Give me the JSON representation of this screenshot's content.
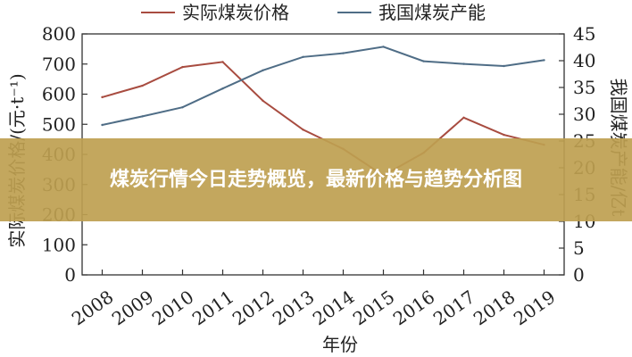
{
  "banner": {
    "title": "煤炭行情今日走势概览，最新价格与趋势分析图"
  },
  "chart_data": {
    "type": "line",
    "title": "",
    "xlabel": "年份",
    "ylabel_left": "实际煤炭价格/(元·t⁻¹)",
    "ylabel_right": "我国煤炭产能/亿t",
    "x": [
      "2008",
      "2009",
      "2010",
      "2011",
      "2012",
      "2013",
      "2014",
      "2015",
      "2016",
      "2017",
      "2018",
      "2019"
    ],
    "ylim_left": [
      0,
      800
    ],
    "ylim_right": [
      0,
      45
    ],
    "yticks_left": [
      0,
      100,
      200,
      300,
      400,
      500,
      600,
      700,
      800
    ],
    "yticks_right": [
      0,
      5,
      10,
      15,
      20,
      25,
      30,
      35,
      40,
      45
    ],
    "legend_position": "top",
    "series": [
      {
        "name": "实际煤炭价格",
        "axis": "left",
        "color": "#a84c40",
        "values": [
          590,
          628,
          690,
          707,
          578,
          482,
          418,
          330,
          405,
          522,
          465,
          432
        ]
      },
      {
        "name": "我国煤炭产能",
        "axis": "right",
        "color": "#4f6d86",
        "values": [
          28.0,
          29.6,
          31.3,
          34.8,
          38.2,
          40.7,
          41.4,
          42.6,
          39.9,
          39.4,
          39.0,
          40.1
        ]
      }
    ]
  }
}
